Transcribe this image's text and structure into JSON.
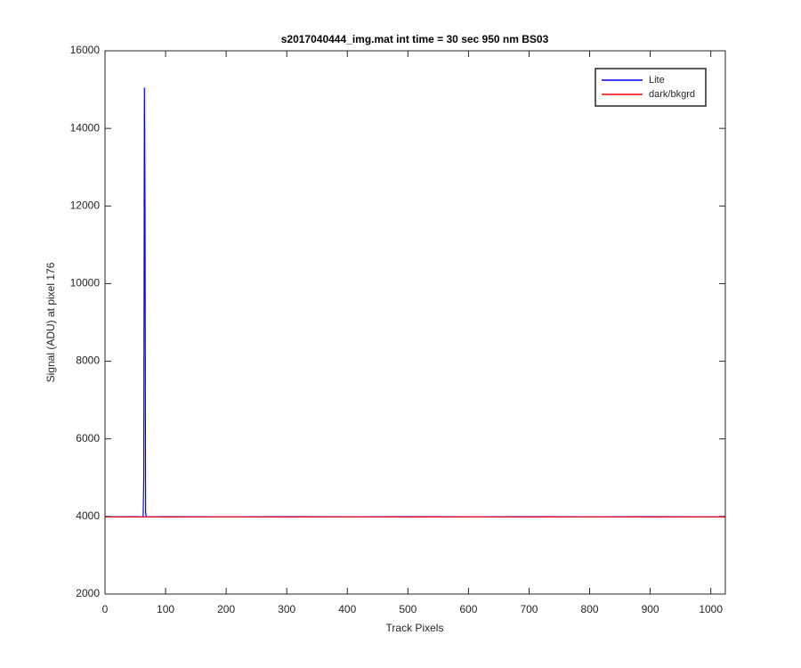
{
  "chart_data": {
    "type": "line",
    "title": "s2017040444_img.mat int time = 30 sec  950 nm BS03",
    "x_label": "Track Pixels",
    "y_label": "Signal (ADU) at pixel 176",
    "x": [
      0,
      50,
      62,
      63,
      64,
      65,
      66,
      67,
      68,
      70,
      100,
      200,
      300,
      400,
      500,
      600,
      700,
      800,
      900,
      1000,
      1024
    ],
    "series": [
      {
        "name": "Lite",
        "color": "#0000ff",
        "values": [
          3990,
          3995,
          3990,
          4000,
          5000,
          15050,
          12000,
          4100,
          4000,
          3990,
          3995,
          3990,
          3995,
          3990,
          3995,
          3990,
          3995,
          3990,
          3995,
          3990,
          3990
        ]
      },
      {
        "name": "dark/bkgrd",
        "color": "#ff0000",
        "values": [
          3985,
          3990,
          3985,
          3990,
          3985,
          3990,
          3985,
          3990,
          3985,
          3990,
          3985,
          3990,
          3985,
          3990,
          3985,
          3990,
          3985,
          3990,
          3985,
          3990,
          3985
        ]
      }
    ],
    "xlim": [
      0,
      1024
    ],
    "xticks": [
      0,
      100,
      200,
      300,
      400,
      500,
      600,
      700,
      800,
      900,
      1000
    ],
    "ylim": [
      2000,
      16000
    ],
    "yticks": [
      2000,
      4000,
      6000,
      8000,
      10000,
      12000,
      14000,
      16000
    ],
    "legend": "northeast"
  }
}
